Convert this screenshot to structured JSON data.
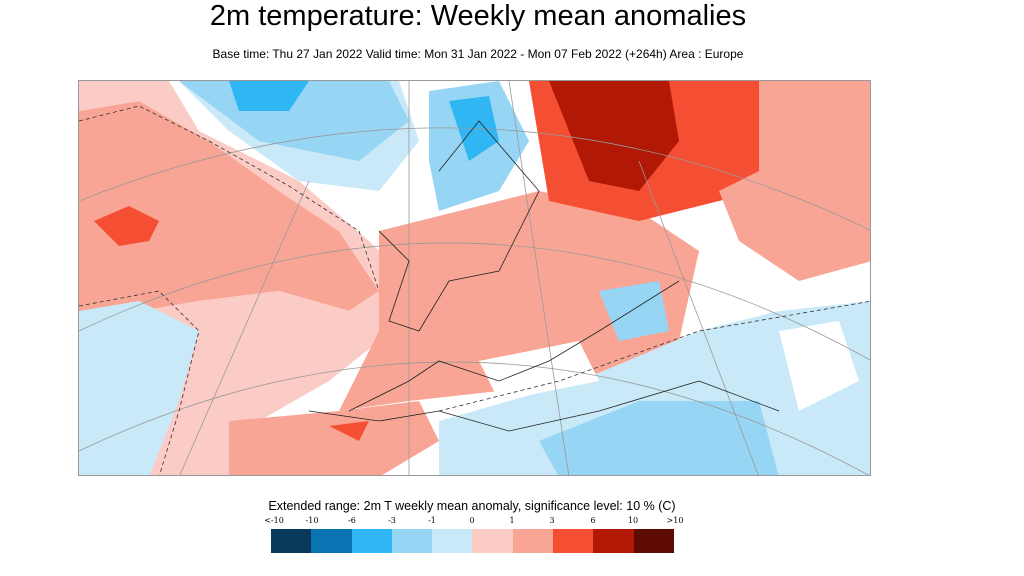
{
  "title": "2m temperature: Weekly mean anomalies",
  "subtitle": "Base time: Thu 27 Jan 2022 Valid time: Mon 31 Jan 2022 - Mon 07 Feb 2022 (+264h) Area : Europe",
  "map": {
    "area": "Europe",
    "projection": "conic",
    "contours": "dashed significance lines, coastlines, graticule"
  },
  "legend": {
    "title": "Extended range: 2m T weekly mean anomaly, significance level: 10 % (C)",
    "labels": [
      "<-10",
      "-10",
      "-6",
      "-3",
      "-1",
      "0",
      "1",
      "3",
      "6",
      "10",
      ">10"
    ],
    "colors": [
      "#083a5c",
      "#0a74b3",
      "#2fb6f3",
      "#97d5f5",
      "#c9e9f8",
      "#fbcbc5",
      "#f9a595",
      "#f54f33",
      "#b11906",
      "#5e0c02"
    ]
  }
}
